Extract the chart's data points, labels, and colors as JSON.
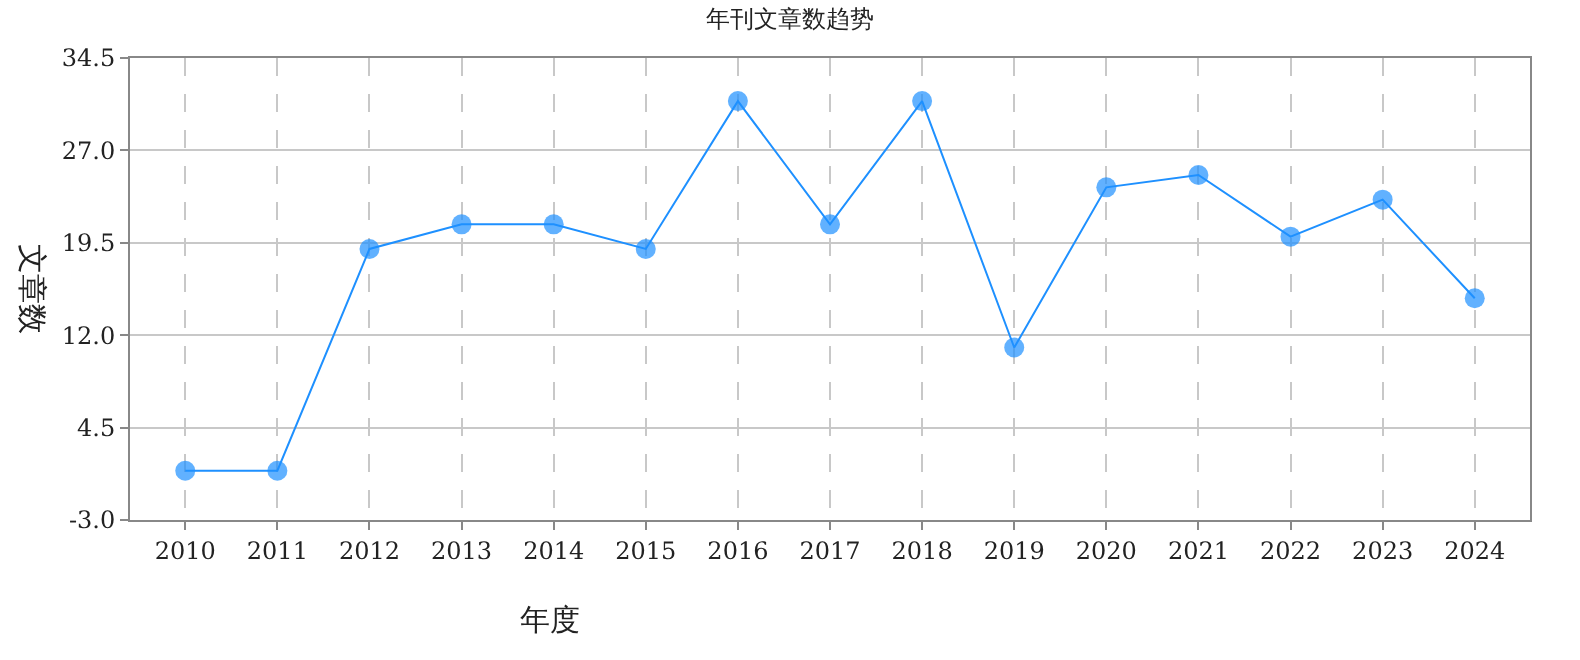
{
  "chart_data": {
    "type": "line",
    "title": "年刊文章数趋势",
    "xlabel": "年度",
    "ylabel": "文章数",
    "categories": [
      "2010",
      "2011",
      "2012",
      "2013",
      "2014",
      "2015",
      "2016",
      "2017",
      "2018",
      "2019",
      "2020",
      "2021",
      "2022",
      "2023",
      "2024"
    ],
    "series": [
      {
        "color": "#1e90ff",
        "values": [
          1,
          1,
          19,
          21,
          21,
          19,
          31,
          21,
          31,
          11,
          24,
          25,
          20,
          23,
          15
        ]
      }
    ],
    "ylim": [
      -3.0,
      34.5
    ],
    "yticks": [
      {
        "value": -3.0,
        "label": "-3.0"
      },
      {
        "value": 4.5,
        "label": "4.5"
      },
      {
        "value": 12.0,
        "label": "12.0"
      },
      {
        "value": 19.5,
        "label": "19.5"
      },
      {
        "value": 27.0,
        "label": "27.0"
      },
      {
        "value": 34.5,
        "label": "34.5"
      }
    ],
    "grid": true,
    "marker": "circle",
    "line_style": "solid",
    "legend": false
  }
}
